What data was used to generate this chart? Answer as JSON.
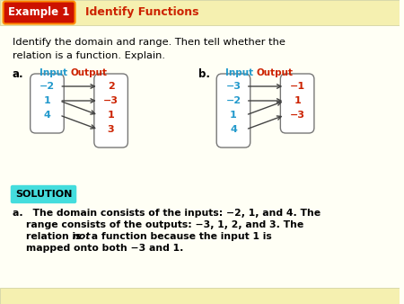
{
  "bg_color": "#fffff5",
  "header_stripe_color": "#f5f0b0",
  "header_bg": "#cc1100",
  "header_text": "Example 1",
  "header_subtitle": "Identify Functions",
  "header_subtitle_color": "#cc2200",
  "main_question_line1": "Identify the domain and range. Then tell whether the",
  "main_question_line2": "relation is a function. Explain.",
  "input_color": "#2299cc",
  "output_color": "#cc2200",
  "arrow_color": "#444444",
  "diagram_a": {
    "inputs": [
      "−2",
      "1",
      "4"
    ],
    "outputs": [
      "2",
      "−3",
      "1",
      "3"
    ],
    "arrows": [
      [
        0,
        0
      ],
      [
        1,
        1
      ],
      [
        1,
        2
      ],
      [
        2,
        3
      ]
    ]
  },
  "diagram_b": {
    "inputs": [
      "−3",
      "−2",
      "1",
      "4"
    ],
    "outputs": [
      "−1",
      "1",
      "−3"
    ],
    "arrows": [
      [
        0,
        0
      ],
      [
        1,
        1
      ],
      [
        2,
        1
      ],
      [
        3,
        2
      ]
    ]
  },
  "solution_bg": "#44dddd",
  "solution_text": "SOLUTION",
  "sol_line1": "a. The domain consists of the inputs: −2, 1, and 4. The",
  "sol_line2": "    range consists of the outputs: −3, 1, 2, and 3. The",
  "sol_line3a": "    relation is ",
  "sol_line3b": "not",
  "sol_line3c": " a function because the input 1 is",
  "sol_line4": "    mapped onto both −3 and 1."
}
